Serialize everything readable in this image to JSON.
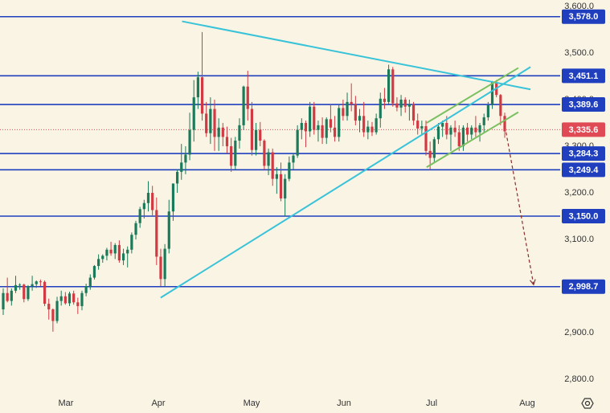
{
  "colors": {
    "background": "#f9f4e4",
    "up": "#1b7a5a",
    "down": "#d13a43",
    "level": "#1f3fbf",
    "trend": "#38c3d9",
    "channel": "#7ac060",
    "projection": "#8b2e2e",
    "current": "#e04a55",
    "axis_text": "#333333"
  },
  "settings_icon": "gear-icon",
  "chart_data": {
    "type": "candlestick",
    "ylim": [
      2760,
      3600
    ],
    "y_ticks": [
      "3,600.0",
      "3,500.0",
      "3,400.0",
      "3,300.0",
      "3,200.0",
      "3,100.0",
      "3,000.0",
      "2,900.0",
      "2,800.0"
    ],
    "x_labels": [
      "Mar",
      "Apr",
      "May",
      "Jun",
      "Jul",
      "Aug"
    ],
    "grid": false,
    "levels": [
      {
        "value": 3578.0,
        "label": "3,578.0"
      },
      {
        "value": 3451.1,
        "label": "3,451.1"
      },
      {
        "value": 3389.6,
        "label": "3,389.6"
      },
      {
        "value": 3284.3,
        "label": "3,284.3"
      },
      {
        "value": 3249.4,
        "label": "3,249.4"
      },
      {
        "value": 3150.0,
        "label": "3,150.0"
      },
      {
        "value": 2998.7,
        "label": "2,998.7"
      }
    ],
    "current_price": {
      "value": 3335.6,
      "label": "3,335.6"
    },
    "trendlines": [
      {
        "kind": "trend",
        "from": [
          "Apr 1",
          2975
        ],
        "to": [
          "Jul 31",
          3470
        ]
      },
      {
        "kind": "trend",
        "from": [
          "Apr 8",
          3568
        ],
        "to": [
          "Jul 31",
          3422
        ]
      },
      {
        "kind": "channel",
        "from": [
          "Jun 27",
          3255
        ],
        "to": [
          "Jul 27",
          3373
        ]
      },
      {
        "kind": "channel",
        "from": [
          "Jun 27",
          3350
        ],
        "to": [
          "Jul 27",
          3468
        ]
      }
    ],
    "projection": {
      "from": [
        "Jul 23",
        3330
      ],
      "to": [
        "Aug 1",
        3003
      ]
    },
    "candles": [
      [
        2950,
        2995,
        2938,
        2985
      ],
      [
        2985,
        3018,
        2965,
        2968
      ],
      [
        2968,
        2995,
        2958,
        2990
      ],
      [
        2990,
        3022,
        2985,
        3002
      ],
      [
        3002,
        3006,
        2992,
        3003
      ],
      [
        3003,
        3005,
        2965,
        2972
      ],
      [
        2972,
        3002,
        2968,
        3000
      ],
      [
        3000,
        3022,
        2990,
        3004
      ],
      [
        3004,
        3012,
        2996,
        3010
      ],
      [
        3010,
        3014,
        3000,
        3009
      ],
      [
        3009,
        3012,
        2957,
        2962
      ],
      [
        2962,
        2973,
        2928,
        2950
      ],
      [
        2950,
        2952,
        2902,
        2925
      ],
      [
        2925,
        2977,
        2920,
        2968
      ],
      [
        2968,
        2990,
        2958,
        2978
      ],
      [
        2978,
        2987,
        2960,
        2963
      ],
      [
        2963,
        2988,
        2957,
        2984
      ],
      [
        2984,
        2990,
        2960,
        2965
      ],
      [
        2965,
        2975,
        2940,
        2957
      ],
      [
        2957,
        2990,
        2948,
        2985
      ],
      [
        2985,
        3005,
        2978,
        3000
      ],
      [
        3000,
        3025,
        2992,
        3018
      ],
      [
        3018,
        3045,
        3014,
        3043
      ],
      [
        3043,
        3068,
        3035,
        3058
      ],
      [
        3058,
        3068,
        3050,
        3065
      ],
      [
        3065,
        3082,
        3055,
        3078
      ],
      [
        3078,
        3095,
        3065,
        3070
      ],
      [
        3070,
        3092,
        3058,
        3088
      ],
      [
        3088,
        3098,
        3050,
        3055
      ],
      [
        3055,
        3080,
        3045,
        3070
      ],
      [
        3070,
        3085,
        3040,
        3078
      ],
      [
        3078,
        3115,
        3070,
        3110
      ],
      [
        3110,
        3140,
        3100,
        3135
      ],
      [
        3135,
        3170,
        3125,
        3165
      ],
      [
        3165,
        3185,
        3145,
        3178
      ],
      [
        3178,
        3225,
        3160,
        3200
      ],
      [
        3200,
        3215,
        3150,
        3163
      ],
      [
        3163,
        3190,
        3045,
        3063
      ],
      [
        3063,
        3080,
        3000,
        3015
      ],
      [
        3015,
        3090,
        3000,
        3080
      ],
      [
        3080,
        3185,
        3070,
        3160
      ],
      [
        3160,
        3220,
        3140,
        3220
      ],
      [
        3220,
        3250,
        3200,
        3245
      ],
      [
        3245,
        3305,
        3228,
        3265
      ],
      [
        3265,
        3300,
        3240,
        3282
      ],
      [
        3282,
        3372,
        3270,
        3335
      ],
      [
        3335,
        3442,
        3310,
        3405
      ],
      [
        3405,
        3460,
        3380,
        3448
      ],
      [
        3448,
        3545,
        3355,
        3370
      ],
      [
        3370,
        3395,
        3320,
        3328
      ],
      [
        3328,
        3405,
        3305,
        3380
      ],
      [
        3380,
        3400,
        3290,
        3320
      ],
      [
        3320,
        3360,
        3290,
        3340
      ],
      [
        3340,
        3350,
        3300,
        3320
      ],
      [
        3320,
        3342,
        3285,
        3300
      ],
      [
        3300,
        3318,
        3245,
        3258
      ],
      [
        3258,
        3320,
        3250,
        3312
      ],
      [
        3312,
        3360,
        3295,
        3345
      ],
      [
        3345,
        3430,
        3335,
        3428
      ],
      [
        3428,
        3462,
        3355,
        3380
      ],
      [
        3380,
        3395,
        3280,
        3292
      ],
      [
        3292,
        3350,
        3280,
        3335
      ],
      [
        3335,
        3352,
        3300,
        3312
      ],
      [
        3312,
        3315,
        3250,
        3258
      ],
      [
        3258,
        3295,
        3238,
        3287
      ],
      [
        3287,
        3295,
        3215,
        3230
      ],
      [
        3230,
        3255,
        3198,
        3240
      ],
      [
        3240,
        3265,
        3182,
        3188
      ],
      [
        3188,
        3240,
        3150,
        3230
      ],
      [
        3230,
        3278,
        3225,
        3265
      ],
      [
        3265,
        3285,
        3250,
        3280
      ],
      [
        3280,
        3345,
        3275,
        3335
      ],
      [
        3335,
        3360,
        3315,
        3350
      ],
      [
        3350,
        3355,
        3298,
        3332
      ],
      [
        3332,
        3395,
        3320,
        3385
      ],
      [
        3385,
        3395,
        3325,
        3335
      ],
      [
        3335,
        3355,
        3310,
        3345
      ],
      [
        3345,
        3362,
        3305,
        3318
      ],
      [
        3318,
        3362,
        3305,
        3358
      ],
      [
        3358,
        3390,
        3330,
        3340
      ],
      [
        3340,
        3365,
        3310,
        3320
      ],
      [
        3320,
        3388,
        3310,
        3382
      ],
      [
        3382,
        3400,
        3355,
        3365
      ],
      [
        3365,
        3415,
        3355,
        3395
      ],
      [
        3395,
        3435,
        3375,
        3390
      ],
      [
        3390,
        3408,
        3345,
        3355
      ],
      [
        3355,
        3380,
        3330,
        3365
      ],
      [
        3365,
        3395,
        3320,
        3330
      ],
      [
        3330,
        3355,
        3315,
        3342
      ],
      [
        3342,
        3352,
        3322,
        3330
      ],
      [
        3330,
        3370,
        3325,
        3360
      ],
      [
        3360,
        3415,
        3340,
        3402
      ],
      [
        3402,
        3425,
        3380,
        3395
      ],
      [
        3395,
        3475,
        3390,
        3465
      ],
      [
        3465,
        3470,
        3385,
        3392
      ],
      [
        3392,
        3405,
        3375,
        3383
      ],
      [
        3383,
        3410,
        3365,
        3400
      ],
      [
        3400,
        3405,
        3372,
        3385
      ],
      [
        3385,
        3400,
        3355,
        3390
      ],
      [
        3390,
        3395,
        3345,
        3355
      ],
      [
        3355,
        3370,
        3325,
        3338
      ],
      [
        3338,
        3355,
        3325,
        3343
      ],
      [
        3343,
        3355,
        3280,
        3290
      ],
      [
        3290,
        3310,
        3250,
        3275
      ],
      [
        3275,
        3320,
        3265,
        3315
      ],
      [
        3315,
        3350,
        3305,
        3342
      ],
      [
        3342,
        3355,
        3320,
        3350
      ],
      [
        3350,
        3365,
        3315,
        3325
      ],
      [
        3325,
        3345,
        3290,
        3340
      ],
      [
        3340,
        3355,
        3320,
        3330
      ],
      [
        3330,
        3345,
        3290,
        3300
      ],
      [
        3300,
        3345,
        3290,
        3340
      ],
      [
        3340,
        3350,
        3310,
        3325
      ],
      [
        3325,
        3345,
        3315,
        3340
      ],
      [
        3340,
        3365,
        3320,
        3330
      ],
      [
        3330,
        3350,
        3310,
        3345
      ],
      [
        3345,
        3370,
        3330,
        3362
      ],
      [
        3362,
        3395,
        3355,
        3388
      ],
      [
        3388,
        3440,
        3380,
        3438
      ],
      [
        3438,
        3442,
        3405,
        3410
      ],
      [
        3410,
        3412,
        3345,
        3365
      ],
      [
        3365,
        3372,
        3318,
        3332
      ]
    ]
  }
}
